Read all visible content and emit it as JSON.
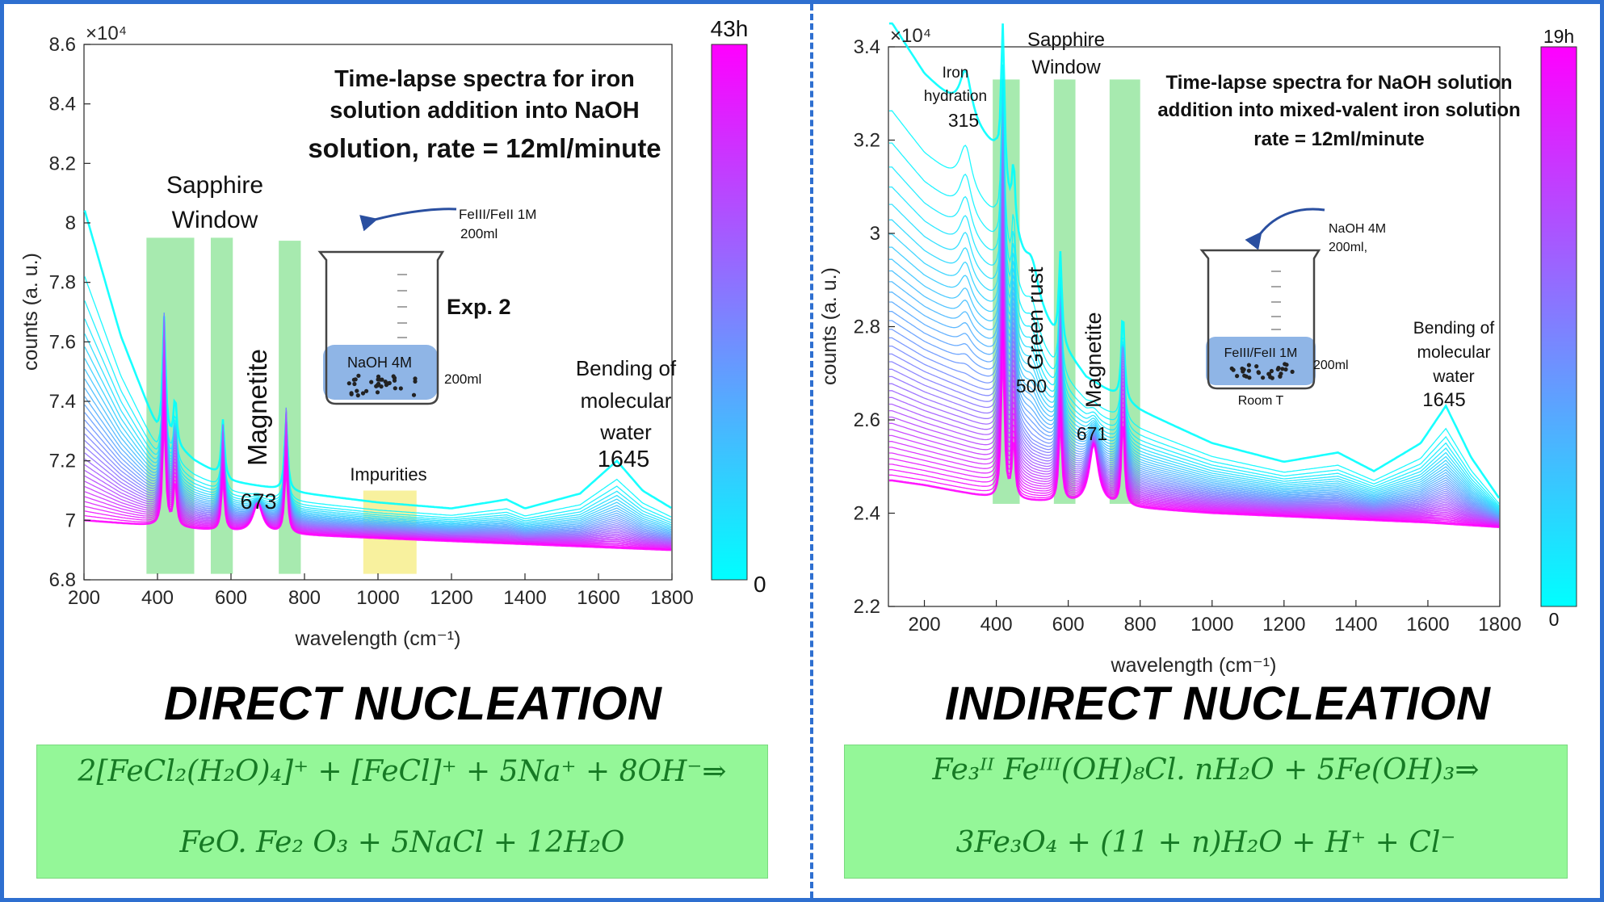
{
  "headings": {
    "left": "DIRECT NUCLEATION",
    "right": "INDIRECT NUCLEATION"
  },
  "equations": {
    "left": {
      "line1": "2[FeCl₂(H₂O)₄]⁺ + [FeCl]⁺ + 5Na⁺ + 8OH⁻⇒",
      "line2": "FeO. Fe₂ O₃ + 5NaCl + 12H₂O"
    },
    "right": {
      "line1": "Fe₃ᴵᴵ Feᴵᴵᴵ(OH)₈Cl. nH₂O + 5Fe(OH)₃⇒",
      "line2": "3Fe₃O₄ + (11 + n)H₂O + H⁺ + Cl⁻"
    }
  },
  "colors": {
    "border": "#2e6fd0",
    "start_color": "#00ffff",
    "end_color": "#ff00ff",
    "band_green": "#5fd86d",
    "impurity_yellow": "#f4ea6a",
    "equation_bg": "#94f798",
    "equation_text": "#167a24"
  },
  "chart_data": [
    {
      "type": "line",
      "title": "Time-lapse spectra for iron solution addition into NaOH solution, rate = 12ml/minute",
      "title_lines": [
        "Time-lapse spectra for iron",
        "solution addition into NaOH",
        "solution, rate = 12ml/minute"
      ],
      "xlabel": "wavelength (cm⁻¹)",
      "ylabel": "counts (a. u.)",
      "y_multiplier": "×10⁴",
      "xlim": [
        200,
        1800
      ],
      "ylim": [
        6.8,
        8.6
      ],
      "xticks": [
        "200",
        "400",
        "600",
        "800",
        "1000",
        "1200",
        "1400",
        "1600",
        "1800"
      ],
      "yticks": [
        "6.8",
        "7",
        "7.2",
        "7.4",
        "7.6",
        "7.8",
        "8",
        "8.2",
        "8.4",
        "8.6"
      ],
      "colorbar": {
        "top_label": "43h",
        "bottom_label": "0"
      },
      "n_curves": 32,
      "baseline_start": [
        [
          200,
          8.05
        ],
        [
          300,
          7.62
        ],
        [
          400,
          7.3
        ],
        [
          500,
          7.2
        ],
        [
          600,
          7.13
        ],
        [
          700,
          7.11
        ],
        [
          800,
          7.09
        ],
        [
          1000,
          7.06
        ],
        [
          1200,
          7.04
        ],
        [
          1350,
          7.07
        ],
        [
          1400,
          7.04
        ],
        [
          1550,
          7.09
        ],
        [
          1650,
          7.2
        ],
        [
          1720,
          7.1
        ],
        [
          1800,
          7.04
        ]
      ],
      "baseline_end": [
        [
          200,
          7.0
        ],
        [
          400,
          6.98
        ],
        [
          600,
          6.96
        ],
        [
          800,
          6.95
        ],
        [
          1000,
          6.94
        ],
        [
          1200,
          6.93
        ],
        [
          1400,
          6.92
        ],
        [
          1600,
          6.91
        ],
        [
          1800,
          6.9
        ]
      ],
      "sharp_peaks": [
        {
          "x": 418,
          "h": 0.62
        },
        {
          "x": 448,
          "h": 0.24
        },
        {
          "x": 578,
          "h": 0.3
        },
        {
          "x": 750,
          "h": 0.38
        }
      ],
      "grown_peaks": [
        {
          "x": 673,
          "h": 0.1
        }
      ],
      "bands": [
        {
          "x0": 370,
          "x1": 500,
          "y0": 6.82,
          "y1": 7.95,
          "color": "green"
        },
        {
          "x0": 545,
          "x1": 605,
          "y0": 6.82,
          "y1": 7.95,
          "color": "green"
        },
        {
          "x0": 730,
          "x1": 790,
          "y0": 6.82,
          "y1": 7.94,
          "color": "green"
        },
        {
          "x0": 960,
          "x1": 1105,
          "y0": 6.82,
          "y1": 7.1,
          "color": "yellow"
        }
      ],
      "annotations": {
        "sapphire_line1": "Sapphire",
        "sapphire_line2": "Window",
        "magnetite": "Magnetite",
        "peak_673": "673",
        "impurities": "Impurities",
        "bending_line1": "Bending of",
        "bending_line2": "molecular",
        "bending_line3": "water",
        "peak_1645": "1645",
        "beaker_arrow_line1": "FeIII/FeII 1M",
        "beaker_arrow_line2": "200ml",
        "beaker_liquid": "NaOH 4M",
        "beaker_side": "200ml",
        "experiment": "Exp. 2"
      }
    },
    {
      "type": "line",
      "title": "Time-lapse spectra for NaOH solution addition into mixed-valent iron solution rate = 12ml/minute",
      "title_lines": [
        "Time-lapse spectra for NaOH solution",
        "addition into mixed-valent iron solution",
        "rate = 12ml/minute"
      ],
      "xlabel": "wavelength (cm⁻¹)",
      "ylabel": "counts (a. u.)",
      "y_multiplier": "×10⁴",
      "xlim": [
        100,
        1800
      ],
      "ylim": [
        2.2,
        3.4
      ],
      "xticks": [
        "200",
        "400",
        "600",
        "800",
        "1000",
        "1200",
        "1400",
        "1600",
        "1800"
      ],
      "yticks": [
        "2.2",
        "2.4",
        "2.6",
        "2.8",
        "3",
        "3.2",
        "3.4"
      ],
      "colorbar": {
        "top_label": "19h",
        "bottom_label": "0"
      },
      "n_curves": 40,
      "baseline_start": [
        [
          110,
          3.45
        ],
        [
          200,
          3.34
        ],
        [
          300,
          3.26
        ],
        [
          400,
          3.17
        ],
        [
          450,
          3.0
        ],
        [
          500,
          2.86
        ],
        [
          560,
          2.78
        ],
        [
          650,
          2.69
        ],
        [
          800,
          2.62
        ],
        [
          1000,
          2.55
        ],
        [
          1200,
          2.51
        ],
        [
          1350,
          2.53
        ],
        [
          1450,
          2.49
        ],
        [
          1580,
          2.55
        ],
        [
          1650,
          2.63
        ],
        [
          1720,
          2.52
        ],
        [
          1800,
          2.43
        ]
      ],
      "baseline_end": [
        [
          110,
          2.47
        ],
        [
          200,
          2.46
        ],
        [
          400,
          2.43
        ],
        [
          600,
          2.42
        ],
        [
          800,
          2.41
        ],
        [
          1000,
          2.4
        ],
        [
          1300,
          2.39
        ],
        [
          1600,
          2.38
        ],
        [
          1800,
          2.37
        ]
      ],
      "sharp_peaks": [
        {
          "x": 418,
          "h": 0.55
        },
        {
          "x": 448,
          "h": 0.2
        },
        {
          "x": 578,
          "h": 0.3
        },
        {
          "x": 752,
          "h": 0.3
        }
      ],
      "grown_peaks": [
        {
          "x": 671,
          "h": 0.13
        }
      ],
      "early_peaks": [
        {
          "x": 315,
          "h": 0.1
        },
        {
          "x": 500,
          "h": 0.08
        }
      ],
      "bands": [
        {
          "x0": 390,
          "x1": 465,
          "y0": 2.42,
          "y1": 3.33,
          "color": "green"
        },
        {
          "x0": 560,
          "x1": 620,
          "y0": 2.42,
          "y1": 3.33,
          "color": "green"
        },
        {
          "x0": 715,
          "x1": 800,
          "y0": 2.42,
          "y1": 3.33,
          "color": "green"
        }
      ],
      "annotations": {
        "iron_line1": "Iron",
        "iron_line2": "hydration",
        "peak_315": "315",
        "sapphire_line1": "Sapphire",
        "sapphire_line2": "Window",
        "green_rust": "Green rust",
        "peak_500": "500",
        "magnetite": "Magnetite",
        "peak_671": "671",
        "bending_line1": "Bending of",
        "bending_line2": "molecular",
        "bending_line3": "water",
        "peak_1645": "1645",
        "beaker_arrow_line1": "NaOH 4M",
        "beaker_arrow_line2": "200ml,",
        "beaker_liquid": "FeIII/FeII 1M",
        "beaker_side": "200ml",
        "beaker_bottom": "Room T"
      }
    }
  ]
}
